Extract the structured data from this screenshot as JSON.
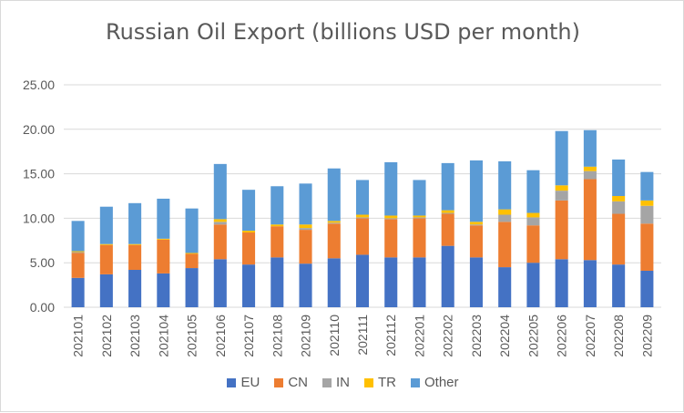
{
  "chart_data": {
    "type": "bar",
    "stacked": true,
    "title": "Russian Oil Export (billions USD per month)",
    "xlabel": "",
    "ylabel": "",
    "ylim": [
      0,
      25
    ],
    "yticks": [
      "0.00",
      "5.00",
      "10.00",
      "15.00",
      "20.00",
      "25.00"
    ],
    "grid": true,
    "legend_position": "bottom",
    "categories": [
      "202101",
      "202102",
      "202103",
      "202104",
      "202105",
      "202106",
      "202107",
      "202108",
      "202109",
      "202110",
      "202111",
      "202112",
      "202201",
      "202202",
      "202203",
      "202204",
      "202205",
      "202206",
      "202207",
      "202208",
      "202209"
    ],
    "series": [
      {
        "name": "EU",
        "color": "#4472c4",
        "values": [
          3.3,
          3.7,
          4.2,
          3.8,
          4.4,
          5.4,
          4.8,
          5.6,
          4.9,
          5.5,
          5.9,
          5.6,
          5.6,
          6.9,
          5.6,
          4.5,
          5.0,
          5.4,
          5.3,
          4.8,
          4.1
        ]
      },
      {
        "name": "CN",
        "color": "#ed7d31",
        "values": [
          2.8,
          3.3,
          2.8,
          3.8,
          1.6,
          3.9,
          3.6,
          3.5,
          3.8,
          3.9,
          4.1,
          4.3,
          4.4,
          3.6,
          3.6,
          5.1,
          4.2,
          6.6,
          9.1,
          5.7,
          5.3
        ]
      },
      {
        "name": "IN",
        "color": "#a5a5a5",
        "values": [
          0.1,
          0.0,
          0.0,
          0.0,
          0.0,
          0.3,
          0.0,
          0.0,
          0.2,
          0.1,
          0.1,
          0.1,
          0.1,
          0.1,
          0.1,
          0.8,
          0.9,
          1.1,
          0.9,
          1.4,
          2.0
        ]
      },
      {
        "name": "TR",
        "color": "#ffc000",
        "values": [
          0.1,
          0.1,
          0.1,
          0.1,
          0.1,
          0.3,
          0.2,
          0.2,
          0.4,
          0.2,
          0.3,
          0.3,
          0.2,
          0.3,
          0.3,
          0.6,
          0.5,
          0.6,
          0.5,
          0.6,
          0.6
        ]
      },
      {
        "name": "Other",
        "color": "#5b9bd5",
        "values": [
          3.4,
          4.2,
          4.6,
          4.5,
          5.0,
          6.2,
          4.6,
          4.3,
          4.6,
          5.9,
          3.9,
          6.0,
          4.0,
          5.3,
          6.9,
          5.4,
          4.8,
          6.1,
          4.1,
          4.1,
          3.2
        ]
      }
    ]
  }
}
